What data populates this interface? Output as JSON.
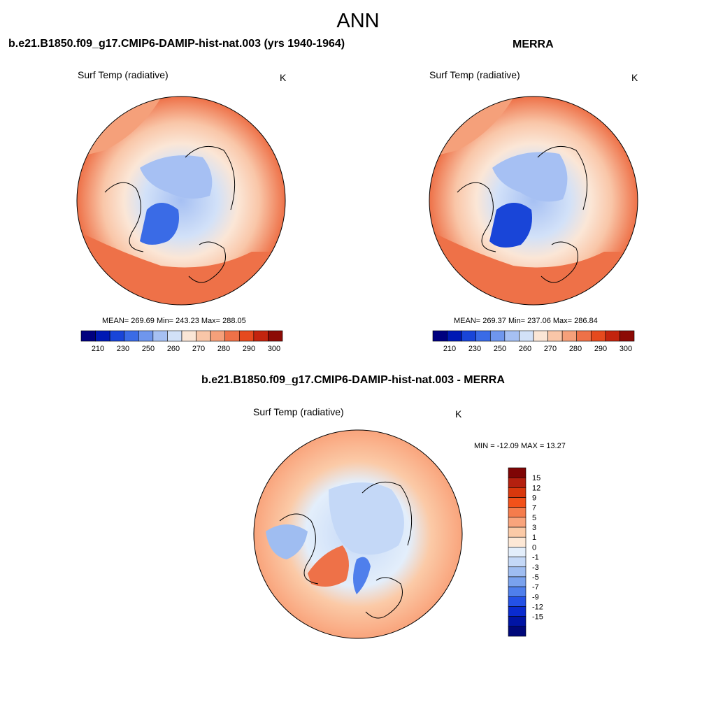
{
  "title": "ANN",
  "panels": [
    {
      "title": "b.e21.B1850.f09_g17.CMIP6-DAMIP-hist-nat.003 (yrs 1940-1964)",
      "variable": "Surf Temp (radiative)",
      "units": "K",
      "stats": "MEAN= 269.69  Min= 243.23  Max= 288.05"
    },
    {
      "title": "MERRA",
      "variable": "Surf Temp (radiative)",
      "units": "K",
      "stats": "MEAN= 269.37  Min= 237.06  Max= 286.84"
    },
    {
      "title": "b.e21.B1850.f09_g17.CMIP6-DAMIP-hist-nat.003 - MERRA",
      "variable": "Surf Temp (radiative)",
      "units": "K",
      "stats": "MIN = -12.09 MAX =  13.27"
    }
  ],
  "abs_colorbar": {
    "colors": [
      "#00007f",
      "#0019b4",
      "#1945d8",
      "#3a6be6",
      "#6f96ed",
      "#a6c0f3",
      "#d2e1f8",
      "#fbe6d6",
      "#f9c6a8",
      "#f5a07a",
      "#ee7148",
      "#e64a1e",
      "#c3240e",
      "#8c0a05"
    ],
    "tick_labels": [
      "210",
      "230",
      "250",
      "260",
      "270",
      "280",
      "290",
      "300"
    ]
  },
  "diff_colorbar": {
    "colors": [
      "#7f0505",
      "#b4200f",
      "#d9380d",
      "#f2511a",
      "#f57c4c",
      "#f9a47c",
      "#fbcaa7",
      "#fde8d6",
      "#e3eefb",
      "#c4d8f7",
      "#9fbdf1",
      "#7aa2ee",
      "#4f7fec",
      "#2451e6",
      "#0a2bcf",
      "#0014a4",
      "#00087a"
    ],
    "tick_labels": [
      "15",
      "12",
      "9",
      "7",
      "5",
      "3",
      "1",
      "0",
      "-1",
      "-3",
      "-5",
      "-7",
      "-9",
      "-12",
      "-15"
    ]
  }
}
